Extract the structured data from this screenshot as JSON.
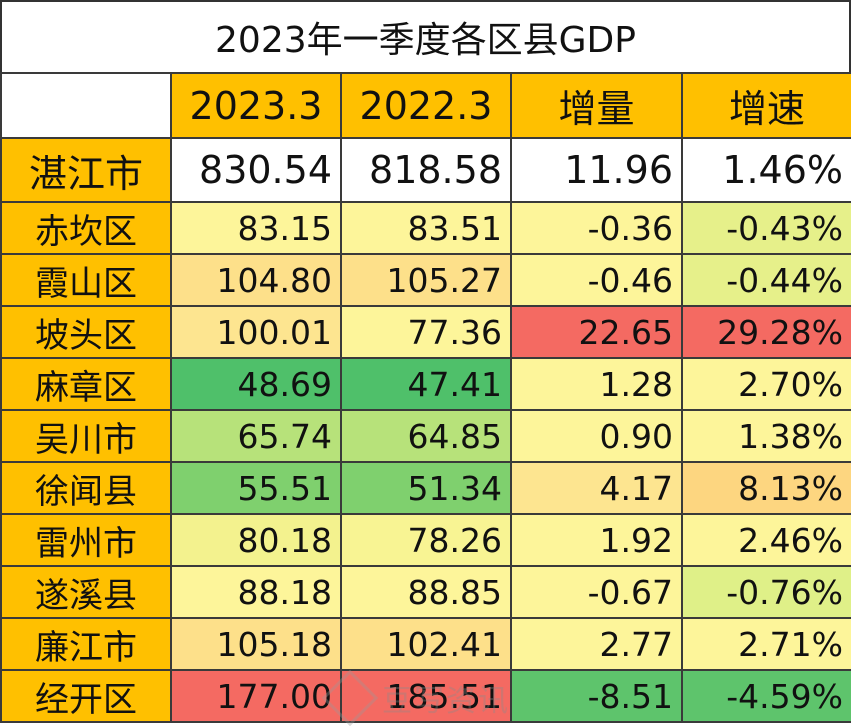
{
  "chart_data": {
    "type": "table",
    "title": "2023年一季度各区县GDP",
    "columns": [
      "2023.3",
      "2022.3",
      "增量",
      "增速"
    ],
    "rows": [
      {
        "name": "湛江市",
        "v2023": "830.54",
        "v2022": "818.58",
        "inc": "11.96",
        "rate": "1.46%",
        "colors": [
          "#ffffff",
          "#ffffff",
          "#ffffff",
          "#ffffff"
        ]
      },
      {
        "name": "赤坎区",
        "v2023": "83.15",
        "v2022": "83.51",
        "inc": "-0.36",
        "rate": "-0.43%",
        "colors": [
          "#fdf59a",
          "#fdf59a",
          "#fdf59a",
          "#e6f08a"
        ]
      },
      {
        "name": "霞山区",
        "v2023": "104.80",
        "v2022": "105.27",
        "inc": "-0.46",
        "rate": "-0.44%",
        "colors": [
          "#fde08a",
          "#fde08a",
          "#fdf59a",
          "#e6f08a"
        ]
      },
      {
        "name": "坡头区",
        "v2023": "100.01",
        "v2022": "77.36",
        "inc": "22.65",
        "rate": "29.28%",
        "colors": [
          "#fde590",
          "#fdf59a",
          "#f46a62",
          "#f46a62"
        ]
      },
      {
        "name": "麻章区",
        "v2023": "48.69",
        "v2022": "47.41",
        "inc": "1.28",
        "rate": "2.70%",
        "colors": [
          "#4fc06a",
          "#4fc06a",
          "#fdf59a",
          "#fdf59a"
        ]
      },
      {
        "name": "吴川市",
        "v2023": "65.74",
        "v2022": "64.85",
        "inc": "0.90",
        "rate": "1.38%",
        "colors": [
          "#b7e27a",
          "#b7e27a",
          "#fdf59a",
          "#fdf59a"
        ]
      },
      {
        "name": "徐闻县",
        "v2023": "55.51",
        "v2022": "51.34",
        "inc": "4.17",
        "rate": "8.13%",
        "colors": [
          "#7fd06e",
          "#7fd06e",
          "#fde590",
          "#fdd680"
        ]
      },
      {
        "name": "雷州市",
        "v2023": "80.18",
        "v2022": "78.26",
        "inc": "1.92",
        "rate": "2.46%",
        "colors": [
          "#f3f28e",
          "#f8f493",
          "#fdf59a",
          "#fdf59a"
        ]
      },
      {
        "name": "遂溪县",
        "v2023": "88.18",
        "v2022": "88.85",
        "inc": "-0.67",
        "rate": "-0.76%",
        "colors": [
          "#fdf59a",
          "#fdf59a",
          "#fdf59a",
          "#dff088"
        ]
      },
      {
        "name": "廉江市",
        "v2023": "105.18",
        "v2022": "102.41",
        "inc": "2.77",
        "rate": "2.71%",
        "colors": [
          "#fde08a",
          "#fde08a",
          "#fdf59a",
          "#fdf59a"
        ]
      },
      {
        "name": "经开区",
        "v2023": "177.00",
        "v2022": "185.51",
        "inc": "-8.51",
        "rate": "-4.59%",
        "colors": [
          "#f46a62",
          "#f46a62",
          "#5ec46c",
          "#5ec46c"
        ]
      }
    ]
  },
  "header_color": "#ffc000",
  "watermark": "豆写资讯"
}
